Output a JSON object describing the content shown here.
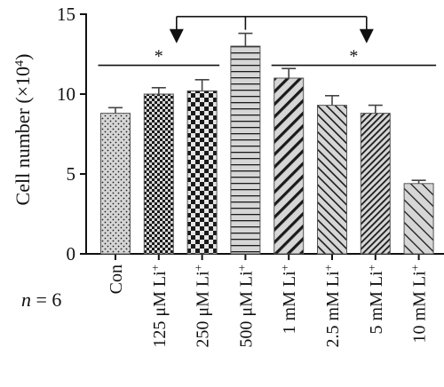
{
  "chart_data": {
    "type": "bar",
    "ylabel_text": "Cell number (×10",
    "ylabel_exp": "4",
    "ylabel_close": ")",
    "ylim": [
      0,
      15
    ],
    "yticks": [
      "0",
      "5",
      "10",
      "15"
    ],
    "n_label_var": "n",
    "n_label_rest": " = 6",
    "categories": [
      {
        "num": "",
        "unit": "Con",
        "sup": ""
      },
      {
        "num": "125 ",
        "unit": "μM Li",
        "sup": "+"
      },
      {
        "num": "250 ",
        "unit": "μM Li",
        "sup": "+"
      },
      {
        "num": "500 ",
        "unit": "μM Li",
        "sup": "+"
      },
      {
        "num": "1 ",
        "unit": "mM Li",
        "sup": "+"
      },
      {
        "num": "2.5 ",
        "unit": "mM Li",
        "sup": "+"
      },
      {
        "num": "5 ",
        "unit": "mM Li",
        "sup": "+"
      },
      {
        "num": "10 ",
        "unit": "mM Li",
        "sup": "+"
      }
    ],
    "values": [
      8.8,
      10.0,
      10.2,
      13.0,
      11.0,
      9.3,
      8.8,
      4.4
    ],
    "errors": [
      0.35,
      0.4,
      0.7,
      0.8,
      0.6,
      0.6,
      0.5,
      0.2
    ],
    "patterns": [
      "dots",
      "checker-small",
      "checker-large",
      "hlines",
      "diag-wide",
      "diag-medium",
      "diag-dense",
      "back-diag"
    ],
    "bar_fill": "#d6d6d6",
    "pattern_color": "#1a1a1a",
    "significance": [
      {
        "label": "*",
        "from": 0,
        "to": 2,
        "y": 11.8
      },
      {
        "label": "*",
        "from": 4,
        "to": 7,
        "y": 11.8
      }
    ],
    "arrow_bracket": {
      "source": 3,
      "targets": [
        1,
        6
      ],
      "y": 14.85
    }
  }
}
